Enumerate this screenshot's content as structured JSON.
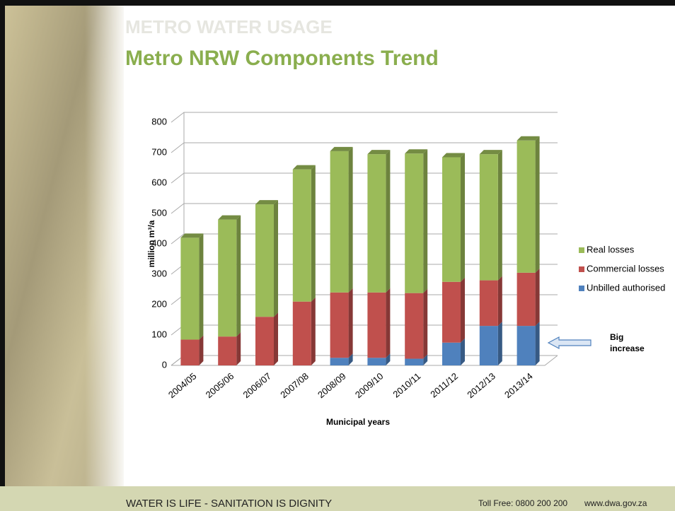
{
  "header": {
    "section": "METRO WATER USAGE"
  },
  "chart_data": {
    "type": "bar",
    "stacked": true,
    "title": "Metro NRW Components Trend",
    "y_label": "million m³/a",
    "x_label": "Municipal years",
    "categories": [
      "2004/05",
      "2005/06",
      "2006/07",
      "2007/08",
      "2008/09",
      "2009/10",
      "2010/11",
      "2011/12",
      "2012/13",
      "2013/14"
    ],
    "series": [
      {
        "name": "Unbilled authorised",
        "color": "#4f81bd",
        "values": [
          0,
          0,
          0,
          0,
          25,
          25,
          22,
          75,
          130,
          130
        ]
      },
      {
        "name": "Commercial losses",
        "color": "#c0504d",
        "values": [
          85,
          95,
          160,
          210,
          215,
          215,
          216,
          200,
          150,
          175
        ]
      },
      {
        "name": "Real losses",
        "color": "#9bbb59",
        "values": [
          335,
          385,
          370,
          435,
          465,
          455,
          459,
          410,
          415,
          435
        ]
      }
    ],
    "ylim": [
      0,
      800
    ],
    "yticks": [
      0,
      100,
      200,
      300,
      400,
      500,
      600,
      700,
      800
    ],
    "grid": true,
    "legend": "right",
    "annotation": [
      "Big",
      "increase"
    ]
  },
  "footer": {
    "slogan": "WATER IS LIFE - SANITATION IS DIGNITY",
    "phone": "Toll Free: 0800 200 200",
    "web": "www.dwa.gov.za"
  }
}
